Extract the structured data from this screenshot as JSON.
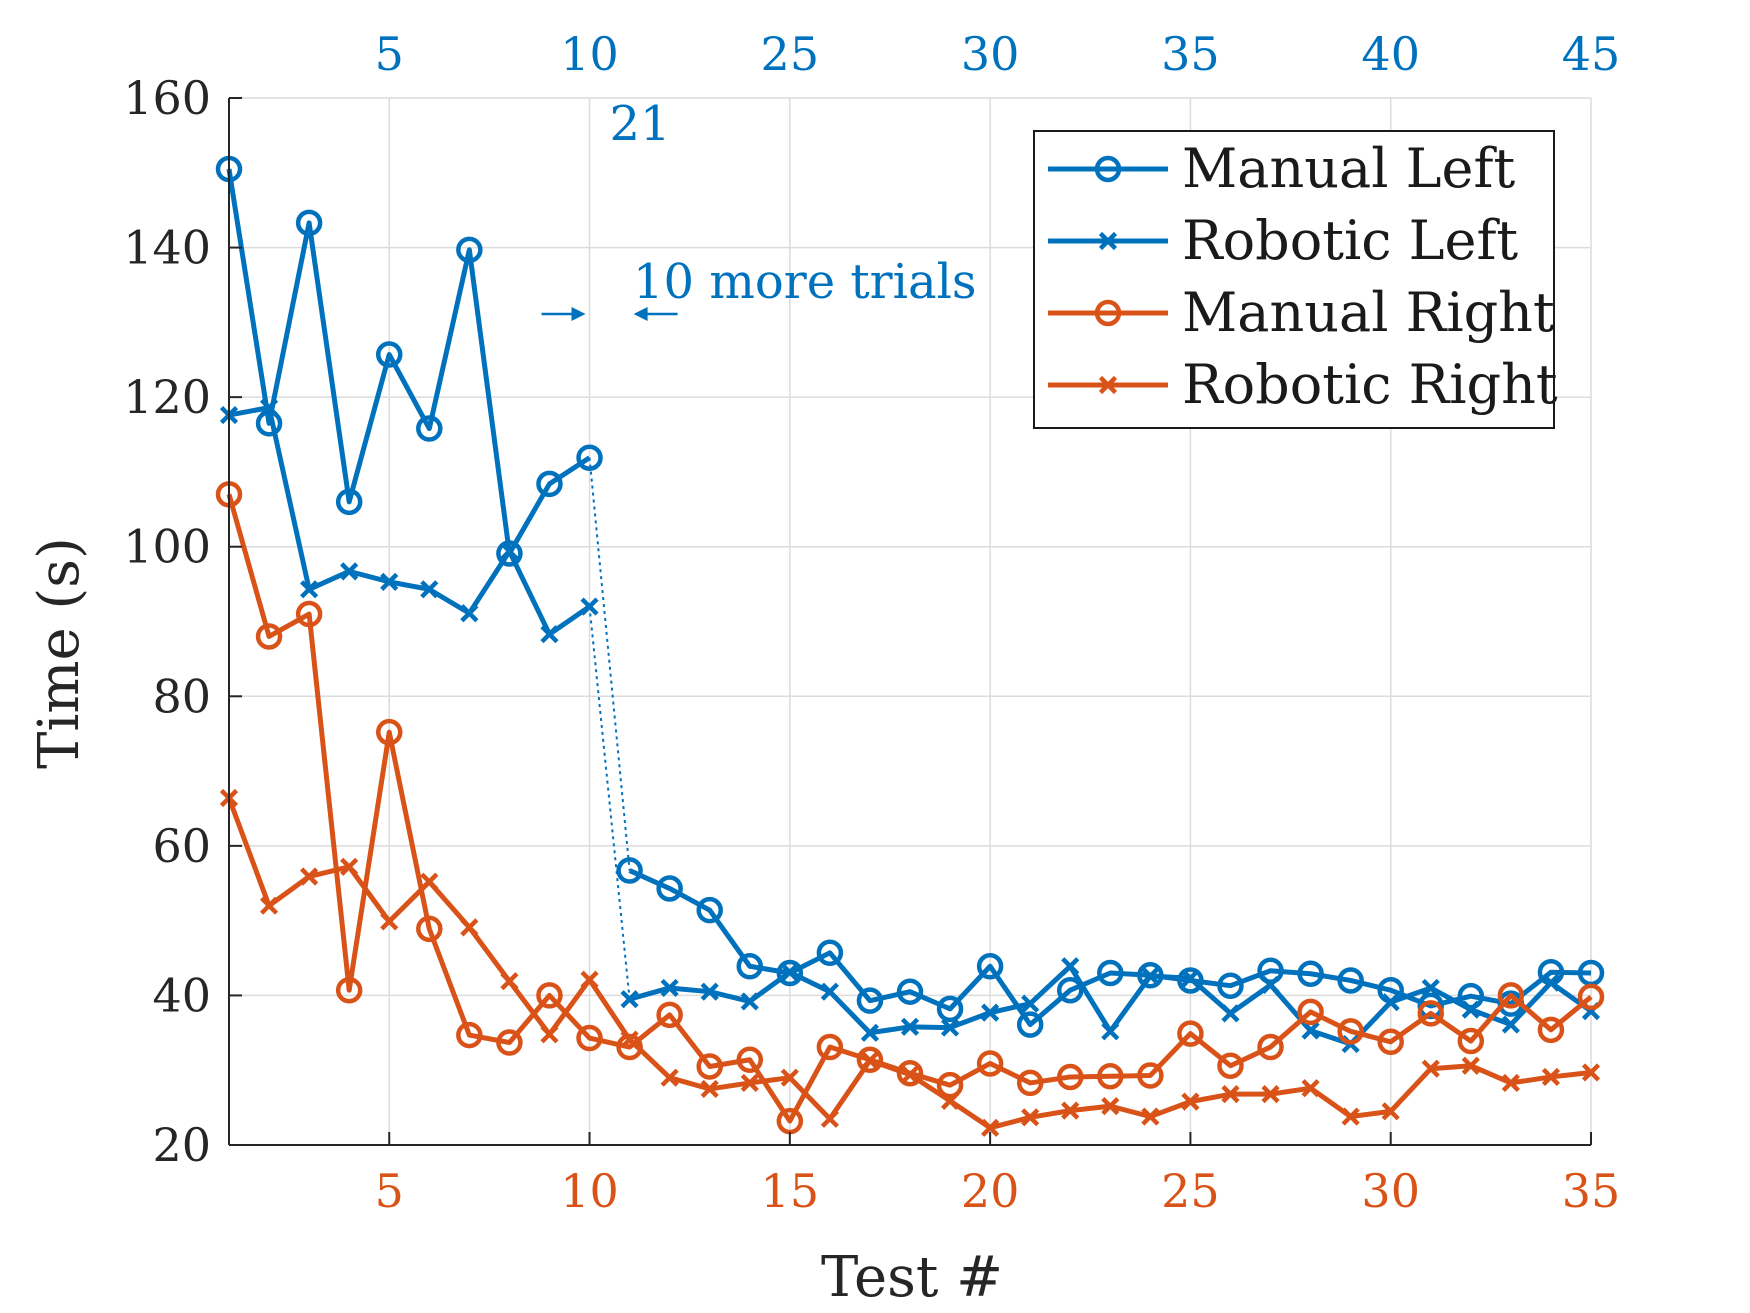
{
  "chart_data": {
    "type": "line",
    "xlabel": "Test #",
    "ylabel": "Time (s)",
    "xlim": [
      1,
      35
    ],
    "ylim": [
      20,
      160
    ],
    "yticks": [
      20,
      40,
      60,
      80,
      100,
      120,
      140,
      160
    ],
    "bottom_ticks": [
      {
        "x": 5,
        "label": "5"
      },
      {
        "x": 10,
        "label": "10"
      },
      {
        "x": 15,
        "label": "15"
      },
      {
        "x": 20,
        "label": "20"
      },
      {
        "x": 25,
        "label": "25"
      },
      {
        "x": 30,
        "label": "30"
      },
      {
        "x": 35,
        "label": "35"
      }
    ],
    "top_ticks": [
      {
        "x": 5,
        "label": "5"
      },
      {
        "x": 10,
        "label": "10"
      },
      {
        "x": 15,
        "label": "25"
      },
      {
        "x": 20,
        "label": "30"
      },
      {
        "x": 25,
        "label": "35"
      },
      {
        "x": 30,
        "label": "40"
      },
      {
        "x": 35,
        "label": "45"
      }
    ],
    "colors": {
      "left": "#0072BD",
      "right": "#D95319",
      "text": "#262626"
    },
    "grid": true,
    "legend_position": "top-right",
    "series": [
      {
        "name": "Manual Left",
        "color": "#0072BD",
        "marker": "circle",
        "segments": [
          {
            "x": [
              1,
              2,
              3,
              4,
              5,
              6,
              7,
              8,
              9,
              10
            ],
            "y": [
              150.5,
              116.5,
              143.3,
              106,
              125.7,
              115.8,
              139.7,
              99.1,
              108.4,
              111.9
            ]
          },
          {
            "x": [
              11,
              12,
              13,
              14,
              15,
              16,
              17,
              18,
              19,
              20,
              21,
              22,
              23,
              24,
              25,
              26,
              27,
              28,
              29,
              30,
              31,
              32,
              33,
              34,
              35
            ],
            "y": [
              56.7,
              54.3,
              51.4,
              43.9,
              43,
              45.7,
              39.3,
              40.5,
              38.2,
              43.9,
              36.1,
              40.7,
              43,
              42.7,
              42,
              41.3,
              43.3,
              42.9,
              42,
              40.7,
              38.6,
              39.9,
              38.9,
              43.1,
              43
            ]
          }
        ]
      },
      {
        "name": "Robotic Left",
        "color": "#0072BD",
        "marker": "x",
        "segments": [
          {
            "x": [
              1,
              2,
              3,
              4,
              5,
              6,
              7,
              8,
              9,
              10
            ],
            "y": [
              117.6,
              118.6,
              94.3,
              96.7,
              95.3,
              94.3,
              91.1,
              99.4,
              88.3,
              92
            ]
          },
          {
            "x": [
              11,
              12,
              13,
              14,
              15,
              16,
              17,
              18,
              19,
              20,
              21,
              22,
              23,
              24,
              25,
              26,
              27,
              28,
              29,
              30,
              31,
              32,
              33,
              34,
              35
            ],
            "y": [
              39.5,
              41,
              40.5,
              39.2,
              43.1,
              40.5,
              35,
              35.8,
              35.7,
              37.7,
              38.9,
              43.9,
              35.2,
              42.6,
              42.3,
              37.6,
              41.4,
              35.3,
              33.5,
              39.1,
              41,
              38.1,
              36.1,
              41.7,
              37.9
            ]
          }
        ]
      },
      {
        "name": "Manual Right",
        "color": "#D95319",
        "marker": "circle",
        "segments": [
          {
            "x": [
              1,
              2,
              3,
              4,
              5,
              6,
              7,
              8,
              9,
              10,
              11,
              12,
              13,
              14,
              15,
              16,
              17,
              18,
              19,
              20,
              21,
              22,
              23,
              24,
              25,
              26,
              27,
              28,
              29,
              30,
              31,
              32,
              33,
              34,
              35
            ],
            "y": [
              107,
              88,
              91,
              40.7,
              75.2,
              48.9,
              34.7,
              33.7,
              40,
              34.3,
              33.1,
              37.4,
              30.5,
              31.4,
              23.2,
              33.1,
              31.4,
              29.6,
              28,
              30.9,
              28.3,
              29.1,
              29.2,
              29.3,
              34.9,
              30.6,
              33.1,
              37.8,
              35.2,
              33.8,
              37.6,
              33.9,
              40,
              35.4,
              39.8
            ]
          }
        ]
      },
      {
        "name": "Robotic Right",
        "color": "#D95319",
        "marker": "x",
        "segments": [
          {
            "x": [
              1,
              2,
              3,
              4,
              5,
              6,
              7,
              8,
              9,
              10,
              11,
              12,
              13,
              14,
              15,
              16,
              17,
              18,
              19,
              20,
              21,
              22,
              23,
              24,
              25,
              26,
              27,
              28,
              29,
              30,
              31,
              32,
              33,
              34,
              35
            ],
            "y": [
              66.4,
              52,
              55.9,
              57.2,
              49.9,
              55.2,
              49.1,
              41.9,
              34.8,
              42.1,
              34.1,
              29,
              27.5,
              28.3,
              29,
              23.5,
              31.3,
              29.4,
              25.9,
              22.3,
              23.7,
              24.6,
              25.2,
              23.8,
              25.8,
              26.8,
              26.8,
              27.6,
              23.8,
              24.5,
              30.2,
              30.6,
              28.3,
              29.1,
              29.7
            ]
          }
        ]
      }
    ],
    "break_connector": {
      "label_top": "21",
      "annotation": "10 more trials",
      "from_x": 10,
      "to_x": 11
    }
  }
}
